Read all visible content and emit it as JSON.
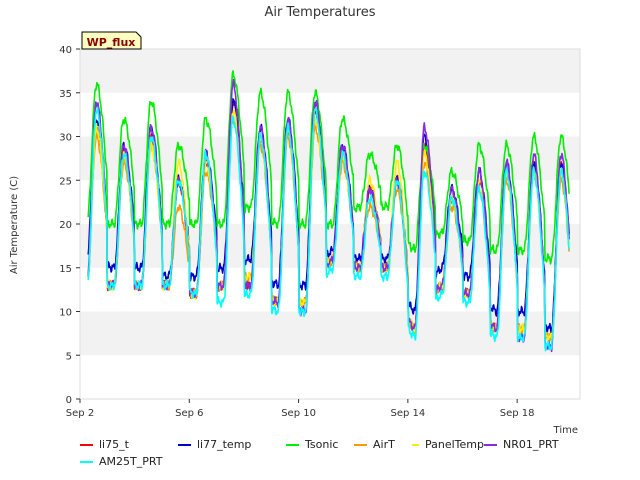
{
  "chart_data": {
    "type": "line",
    "title": "Air Temperatures",
    "xlabel": "Time",
    "ylabel": "Air Temperature (C)",
    "badge": "WP_flux",
    "xlim": [
      2.0,
      20.3
    ],
    "ylim": [
      0,
      40
    ],
    "x_ticks": [
      {
        "value": 2,
        "label": "Sep 2"
      },
      {
        "value": 6,
        "label": "Sep 6"
      },
      {
        "value": 10,
        "label": "Sep 10"
      },
      {
        "value": 14,
        "label": "Sep 14"
      },
      {
        "value": 18,
        "label": "Sep 18"
      }
    ],
    "y_ticks": [
      0,
      5,
      10,
      15,
      20,
      25,
      30,
      35,
      40
    ],
    "x_unit": "day of September",
    "daily_peak_x_fraction": 0.6,
    "series": [
      {
        "name": "li75_t",
        "color": "#ff0000",
        "x_start": 2.3,
        "x_end": 19.9,
        "daily_max": [
          31,
          28,
          30,
          25,
          27,
          34,
          30,
          31,
          33,
          28,
          24,
          25,
          29,
          23,
          25,
          26,
          27,
          27
        ],
        "daily_min": [
          13,
          13,
          13,
          13,
          12,
          13,
          13,
          11,
          11,
          16,
          15,
          15,
          8,
          13,
          12,
          8,
          8,
          7
        ]
      },
      {
        "name": "li77_temp",
        "color": "#0000cc",
        "x_start": 2.3,
        "x_end": 19.9,
        "daily_max": [
          32,
          29,
          31,
          25,
          28,
          34,
          31,
          32,
          34,
          29,
          24,
          25,
          30,
          24,
          26,
          27,
          27,
          27
        ],
        "daily_min": [
          16,
          15,
          15,
          14,
          14,
          15,
          16,
          13,
          13,
          17,
          16,
          16,
          10,
          15,
          14,
          10,
          10,
          8
        ]
      },
      {
        "name": "Tsonic",
        "color": "#00ee00",
        "x_start": 2.3,
        "x_end": 19.9,
        "daily_max": [
          36,
          32,
          34,
          29,
          32,
          37,
          35,
          35,
          35,
          32,
          28,
          29,
          29,
          26,
          29,
          29,
          30,
          30
        ],
        "daily_min": [
          20,
          20,
          20,
          20,
          20,
          20,
          22,
          20,
          20,
          20,
          22,
          22,
          17,
          19,
          18,
          17,
          17,
          16
        ]
      },
      {
        "name": "AirT",
        "color": "#ff9900",
        "x_start": 2.3,
        "x_end": 19.9,
        "daily_max": [
          30,
          27,
          29,
          22,
          26,
          32,
          29,
          30,
          31,
          27,
          22,
          24,
          27,
          22,
          24,
          25,
          26,
          25
        ],
        "daily_min": [
          13,
          13,
          13,
          13,
          12,
          13,
          14,
          11,
          11,
          16,
          15,
          15,
          8,
          13,
          12,
          8,
          8,
          7
        ]
      },
      {
        "name": "PanelTemp",
        "color": "#ffee00",
        "x_start": 2.3,
        "x_end": 19.9,
        "daily_max": [
          31,
          28,
          29,
          27,
          27,
          33,
          30,
          31,
          32,
          28,
          25,
          27,
          28,
          23,
          25,
          26,
          26,
          26
        ],
        "daily_min": [
          13,
          13,
          13,
          13,
          12,
          13,
          14,
          11,
          11,
          16,
          15,
          15,
          8,
          13,
          12,
          8,
          8,
          7
        ]
      },
      {
        "name": "NR01_PRT",
        "color": "#8a2be2",
        "x_start": 2.3,
        "x_end": 19.9,
        "daily_max": [
          34,
          29,
          31,
          25,
          28,
          36,
          31,
          32,
          34,
          29,
          24,
          25,
          31,
          24,
          26,
          27,
          28,
          28
        ],
        "daily_min": [
          13,
          13,
          13,
          13,
          12,
          13,
          13,
          11,
          10,
          16,
          15,
          15,
          8,
          13,
          12,
          8,
          7,
          6
        ]
      },
      {
        "name": "AM25T_PRT",
        "color": "#00ffff",
        "x_start": 2.3,
        "x_end": 19.9,
        "daily_max": [
          33,
          28,
          30,
          25,
          28,
          32,
          30,
          31,
          33,
          28,
          23,
          25,
          26,
          23,
          24,
          26,
          26,
          26
        ],
        "daily_min": [
          12,
          13,
          13,
          13,
          12,
          11,
          12,
          10,
          10,
          15,
          14,
          14,
          7,
          12,
          11,
          7,
          7,
          6
        ]
      }
    ],
    "legend_position": "bottom",
    "grid": "y-bands",
    "band_colors": [
      "#f2f2f2",
      "#ffffff"
    ]
  }
}
